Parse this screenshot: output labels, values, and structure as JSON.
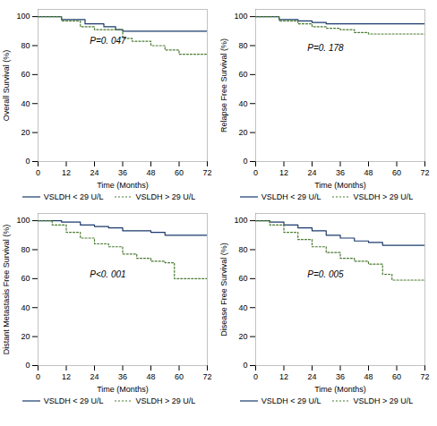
{
  "chart_data": [
    {
      "type": "step",
      "xlabel": "Time (Months)",
      "ylabel": "Overall Survival (%)",
      "annotations": [
        {
          "text": "P=0. 047",
          "x": 22,
          "y": 83
        }
      ],
      "xlim": [
        0,
        72
      ],
      "xticks": [
        0,
        12,
        24,
        36,
        48,
        60,
        72
      ],
      "ylim": [
        0,
        105
      ],
      "yticks": [
        0,
        20,
        40,
        60,
        80,
        100
      ],
      "series": [
        {
          "name": "VSLDH < 29 U/L",
          "color": "#1a3a6b",
          "line_style": "solid",
          "x": [
            0,
            10,
            20,
            28,
            33,
            36,
            48,
            72
          ],
          "values": [
            100,
            98,
            95,
            93,
            91,
            90,
            90,
            90
          ]
        },
        {
          "name": "VSLDH > 29 U/L",
          "color": "#4a7a30",
          "line_style": "dotted",
          "x": [
            0,
            10,
            18,
            24,
            30,
            36,
            40,
            46,
            48,
            54,
            60,
            72
          ],
          "values": [
            100,
            97,
            93,
            91,
            91,
            85,
            83,
            83,
            80,
            77,
            74,
            74
          ]
        }
      ]
    },
    {
      "type": "step",
      "xlabel": "Time (Months)",
      "ylabel": "Relapse Free Survival (%)",
      "annotations": [
        {
          "text": "P=0. 178",
          "x": 22,
          "y": 78
        }
      ],
      "xlim": [
        0,
        72
      ],
      "xticks": [
        0,
        12,
        24,
        36,
        48,
        60,
        72
      ],
      "ylim": [
        0,
        105
      ],
      "yticks": [
        0,
        20,
        40,
        60,
        80,
        100
      ],
      "series": [
        {
          "name": "VSLDH < 29 U/L",
          "color": "#1a3a6b",
          "line_style": "solid",
          "x": [
            0,
            10,
            18,
            24,
            30,
            36,
            48,
            60,
            72
          ],
          "values": [
            100,
            98,
            97,
            96,
            95,
            95,
            95,
            95,
            95
          ]
        },
        {
          "name": "VSLDH > 29 U/L",
          "color": "#4a7a30",
          "line_style": "dotted",
          "x": [
            0,
            10,
            18,
            24,
            30,
            36,
            42,
            48,
            60,
            72
          ],
          "values": [
            100,
            97,
            95,
            93,
            92,
            91,
            89,
            88,
            88,
            88
          ]
        }
      ]
    },
    {
      "type": "step",
      "xlabel": "Time (Months)",
      "ylabel": "Distant Metastasis Free Survival (%)",
      "annotations": [
        {
          "text": "P<0. 001",
          "x": 22,
          "y": 63
        }
      ],
      "xlim": [
        0,
        72
      ],
      "xticks": [
        0,
        12,
        24,
        36,
        48,
        60,
        72
      ],
      "ylim": [
        0,
        105
      ],
      "yticks": [
        0,
        20,
        40,
        60,
        80,
        100
      ],
      "series": [
        {
          "name": "VSLDH < 29 U/L",
          "color": "#1a3a6b",
          "line_style": "solid",
          "x": [
            0,
            10,
            18,
            24,
            30,
            36,
            48,
            54,
            60,
            72
          ],
          "values": [
            100,
            99,
            97,
            96,
            95,
            93,
            92,
            90,
            90,
            90
          ]
        },
        {
          "name": "VSLDH > 29 U/L",
          "color": "#4a7a30",
          "line_style": "dotted",
          "x": [
            0,
            6,
            12,
            18,
            24,
            30,
            36,
            42,
            48,
            54,
            58,
            72
          ],
          "values": [
            100,
            97,
            92,
            88,
            84,
            82,
            77,
            74,
            72,
            71,
            60,
            60
          ]
        }
      ]
    },
    {
      "type": "step",
      "xlabel": "Time (Months)",
      "ylabel": "Disease Free Survival (%)",
      "annotations": [
        {
          "text": "P=0. 005",
          "x": 22,
          "y": 63
        }
      ],
      "xlim": [
        0,
        72
      ],
      "xticks": [
        0,
        12,
        24,
        36,
        48,
        60,
        72
      ],
      "ylim": [
        0,
        105
      ],
      "yticks": [
        0,
        20,
        40,
        60,
        80,
        100
      ],
      "series": [
        {
          "name": "VSLDH < 29 U/L",
          "color": "#1a3a6b",
          "line_style": "solid",
          "x": [
            0,
            6,
            12,
            18,
            24,
            30,
            36,
            42,
            48,
            54,
            60,
            72
          ],
          "values": [
            100,
            99,
            97,
            95,
            93,
            90,
            88,
            86,
            85,
            83,
            83,
            83
          ]
        },
        {
          "name": "VSLDH > 29 U/L",
          "color": "#4a7a30",
          "line_style": "dotted",
          "x": [
            0,
            6,
            12,
            18,
            24,
            30,
            36,
            42,
            48,
            54,
            58,
            72
          ],
          "values": [
            100,
            97,
            92,
            87,
            82,
            78,
            74,
            72,
            70,
            63,
            59,
            59
          ]
        }
      ]
    }
  ]
}
